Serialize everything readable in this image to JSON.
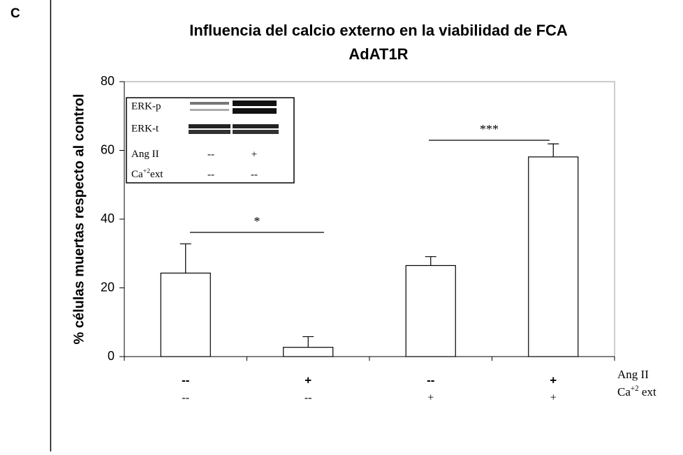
{
  "panel_label": "C",
  "chart_data": {
    "type": "bar",
    "title": "Influencia del calcio externo en la viabilidad de FCA",
    "subtitle": "AdAT1R",
    "y_label": "% células muertas respecto al control",
    "categories": [
      null,
      null,
      null,
      null
    ],
    "category_rows": [
      {
        "name": [
          "Ang II"
        ],
        "labels": [
          "--",
          "+",
          "--",
          "+"
        ]
      },
      {
        "name": [
          "Ca",
          "+2",
          " ext"
        ],
        "labels": [
          "--",
          "--",
          "+",
          "+"
        ]
      }
    ],
    "values": [
      24.3,
      2.7,
      26.5,
      58.1
    ],
    "errors": [
      8.5,
      3.1,
      2.6,
      3.8
    ],
    "color": "#ffffff",
    "ylim": [
      0,
      80
    ],
    "yticks": [
      0,
      20,
      40,
      60,
      80
    ],
    "annotations": [
      "*",
      "***"
    ],
    "inset": {
      "blot_labels": [
        "ERK-p",
        "ERK-t"
      ],
      "conditions": [
        {
          "name": [
            "Ang II"
          ],
          "values": [
            "--",
            "+"
          ]
        },
        {
          "name": [
            "Ca",
            "+2",
            "ext"
          ],
          "values": [
            "--",
            "--"
          ]
        }
      ]
    }
  }
}
